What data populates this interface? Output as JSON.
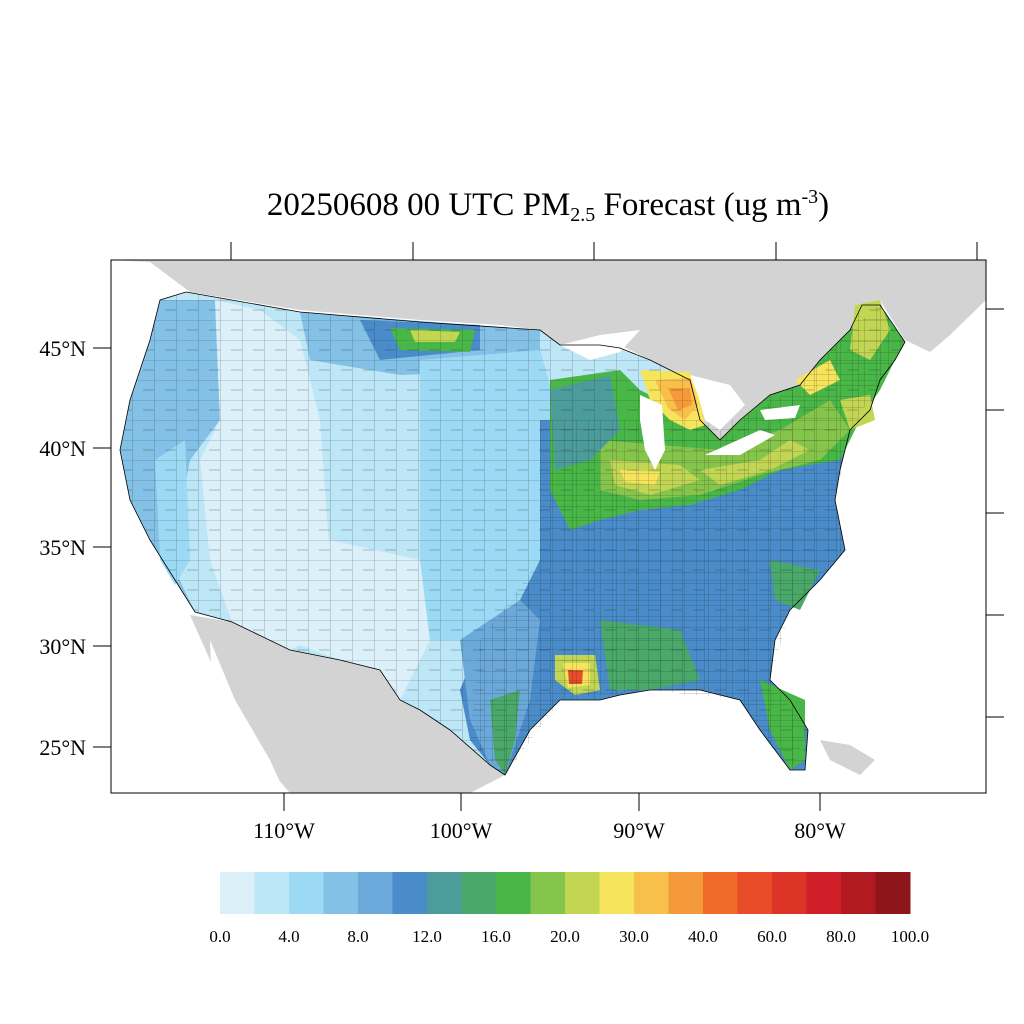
{
  "title": {
    "prefix": "20250608 00 UTC PM",
    "subscript": "2.5",
    "middle": " Forecast (ug m",
    "superscript": "-3",
    "suffix": ")"
  },
  "lat_labels": [
    "45°N",
    "40°N",
    "35°N",
    "30°N",
    "25°N"
  ],
  "lon_labels": [
    "110°W",
    "100°W",
    "90°W",
    "80°W"
  ],
  "colorbar": {
    "colors": [
      "#dcf0fa",
      "#bde6f7",
      "#9bd9f4",
      "#84c1e6",
      "#6aa9da",
      "#4a8cc9",
      "#4c9c9c",
      "#4aa86a",
      "#49b748",
      "#86c54b",
      "#c2d654",
      "#f6e45c",
      "#f8bf4a",
      "#f59a3a",
      "#f06a2a",
      "#e84c29",
      "#dc3427",
      "#d01f28",
      "#b21a22",
      "#8e161b"
    ],
    "labels": [
      "0.0",
      "4.0",
      "8.0",
      "12.0",
      "16.0",
      "20.0",
      "30.0",
      "40.0",
      "60.0",
      "80.0",
      "100.0"
    ]
  }
}
